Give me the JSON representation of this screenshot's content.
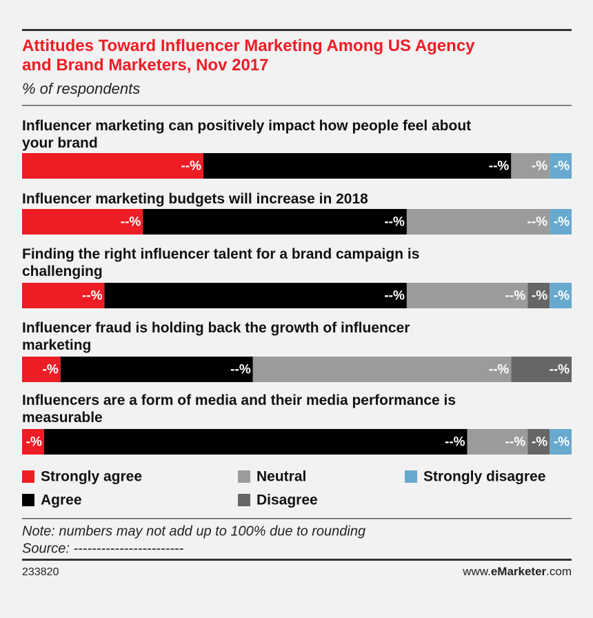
{
  "chart_data": {
    "type": "stacked-bar-horizontal",
    "title": "Attitudes Toward Influencer Marketing Among US Agency and Brand Marketers, Nov 2017",
    "subtitle": "% of respondents",
    "categories": [
      "Influencer marketing can positively impact how people feel about your brand",
      "Influencer marketing budgets will increase in 2018",
      "Finding the right influencer talent for a brand campaign is challenging",
      "Influencer fraud is holding back the growth of influencer marketing",
      "Influencers are a form of media and their media performance is measurable"
    ],
    "series": [
      {
        "name": "Strongly agree",
        "color": "#ee1c25",
        "values": [
          33,
          22,
          15,
          7,
          4
        ],
        "value_labels": [
          "--%",
          "--%",
          "--%",
          "-%",
          "-%"
        ]
      },
      {
        "name": "Agree",
        "color": "#000000",
        "values": [
          56,
          48,
          55,
          35,
          77
        ],
        "value_labels": [
          "--%",
          "--%",
          "--%",
          "--%",
          "--%"
        ]
      },
      {
        "name": "Neutral",
        "color": "#9b9b9b",
        "values": [
          7,
          26,
          22,
          47,
          11
        ],
        "value_labels": [
          "-%",
          "--%",
          "--%",
          "--%",
          "--%"
        ]
      },
      {
        "name": "Disagree",
        "color": "#666666",
        "values": [
          0,
          0,
          4,
          11,
          4
        ],
        "value_labels": [
          null,
          null,
          "-%",
          "--%",
          "-%"
        ]
      },
      {
        "name": "Strongly disagree",
        "color": "#68a9cf",
        "values": [
          4,
          4,
          4,
          0,
          4
        ],
        "value_labels": [
          "-%",
          "-%",
          "-%",
          null,
          "-%"
        ]
      }
    ],
    "xlim": [
      0,
      100
    ],
    "note": "Note: numbers may not add up to 100% due to rounding",
    "source": "Source: ------------------------",
    "chart_id": "233820",
    "site_prefix": "www.",
    "site_brand": "eMarketer",
    "site_suffix": ".com"
  }
}
